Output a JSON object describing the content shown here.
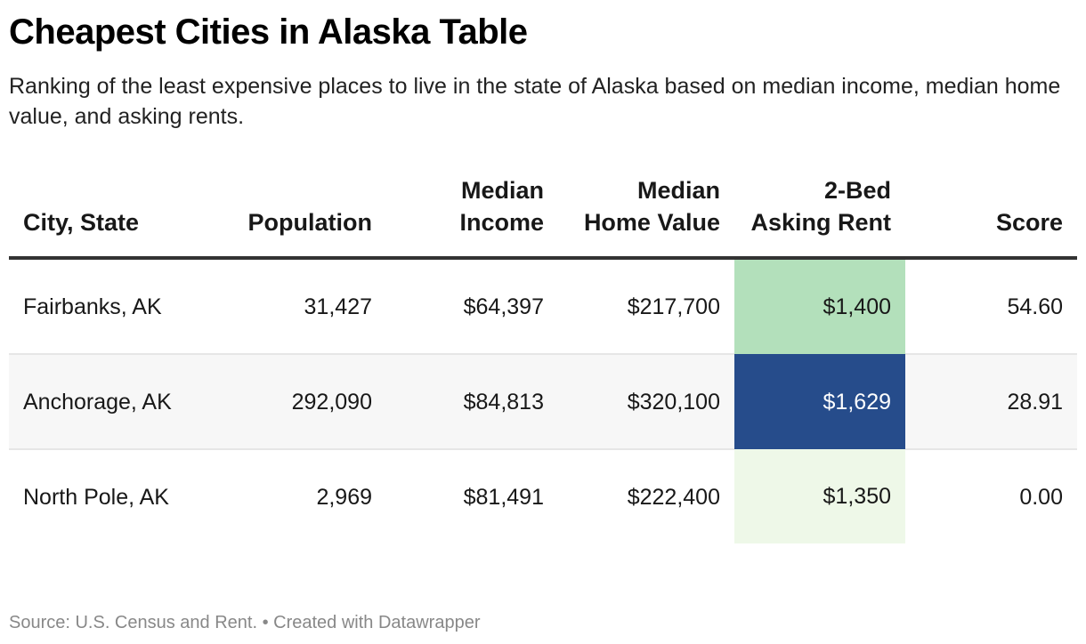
{
  "header": {
    "title": "Cheapest Cities in Alaska Table",
    "subtitle": "Ranking of the least expensive places to live in the state of Alaska based on median income, median home value, and asking rents."
  },
  "table": {
    "columns": [
      {
        "label": "City, State",
        "align": "left"
      },
      {
        "label": "Population",
        "align": "right"
      },
      {
        "label": "Median Income",
        "align": "right"
      },
      {
        "label": "Median Home Value",
        "align": "right"
      },
      {
        "label": "2-Bed Asking Rent",
        "align": "right"
      },
      {
        "label": "Score",
        "align": "right"
      }
    ],
    "rows": [
      {
        "city": "Fairbanks, AK",
        "population": "31,427",
        "median_income": "$64,397",
        "median_home_value": "$217,700",
        "rent": "$1,400",
        "rent_bg": "#b3e0bb",
        "rent_fg": "#181818",
        "score": "54.60"
      },
      {
        "city": "Anchorage, AK",
        "population": "292,090",
        "median_income": "$84,813",
        "median_home_value": "$320,100",
        "rent": "$1,629",
        "rent_bg": "#264c8b",
        "rent_fg": "#ffffff",
        "score": "28.91"
      },
      {
        "city": "North Pole, AK",
        "population": "2,969",
        "median_income": "$81,491",
        "median_home_value": "$222,400",
        "rent": "$1,350",
        "rent_bg": "#eef8e8",
        "rent_fg": "#181818",
        "score": "0.00"
      }
    ]
  },
  "footer": {
    "text": "Source: U.S. Census and Rent. • Created with Datawrapper"
  },
  "chart_data": {
    "type": "table",
    "title": "Cheapest Cities in Alaska Table",
    "subtitle": "Ranking of the least expensive places to live in the state of Alaska based on median income, median home value, and asking rents.",
    "columns": [
      "City, State",
      "Population",
      "Median Income",
      "Median Home Value",
      "2-Bed Asking Rent",
      "Score"
    ],
    "rows": [
      [
        "Fairbanks, AK",
        31427,
        64397,
        217700,
        1400,
        54.6
      ],
      [
        "Anchorage, AK",
        292090,
        84813,
        320100,
        1629,
        28.91
      ],
      [
        "North Pole, AK",
        2969,
        81491,
        222400,
        1350,
        0.0
      ]
    ],
    "heatmap_column": "2-Bed Asking Rent",
    "heatmap_colors": {
      "low": "#eef8e8",
      "mid": "#b3e0bb",
      "high": "#264c8b"
    },
    "source": "Source: U.S. Census and Rent. • Created with Datawrapper"
  }
}
